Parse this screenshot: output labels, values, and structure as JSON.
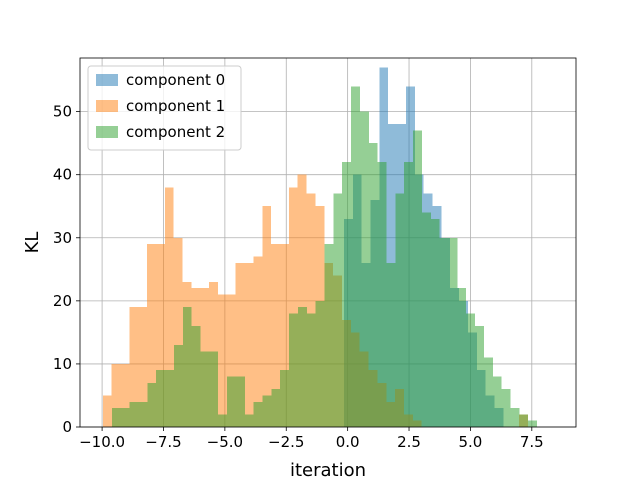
{
  "chart_data": {
    "type": "histogram",
    "xlabel": "iteration",
    "ylabel": "KL",
    "xlim": [
      -10.9,
      9.3
    ],
    "ylim": [
      0,
      58.5
    ],
    "grid": true,
    "legend_placement": "top-left",
    "x_ticks": [
      -10.0,
      -7.5,
      -5.0,
      -2.5,
      0.0,
      2.5,
      5.0,
      7.5
    ],
    "x_tick_labels": [
      "−10.0",
      "−7.5",
      "−5.0",
      "−2.5",
      "0.0",
      "2.5",
      "5.0",
      "7.5"
    ],
    "y_ticks": [
      0,
      10,
      20,
      30,
      40,
      50
    ],
    "y_tick_labels": [
      "0",
      "10",
      "20",
      "30",
      "40",
      "50"
    ],
    "series": [
      {
        "name": "component 0",
        "color": "#1f77b4",
        "alpha": 0.5,
        "bin_start": -0.15,
        "bin_width": 0.3607,
        "counts": [
          33,
          40,
          26,
          36,
          57,
          48,
          48,
          54,
          40,
          37,
          35,
          30,
          22,
          20,
          15,
          9,
          5,
          3
        ]
      },
      {
        "name": "component 1",
        "color": "#ff7f0e",
        "alpha": 0.5,
        "bin_start": -9.97,
        "bin_width": 0.3607,
        "counts": [
          5,
          10,
          10,
          19,
          19,
          29,
          29,
          38,
          30,
          23,
          22,
          22,
          23,
          21,
          21,
          26,
          26,
          27,
          35,
          29,
          29,
          38,
          40,
          37,
          35,
          26,
          24,
          17,
          15,
          12,
          9,
          7,
          4,
          6,
          2,
          1,
          0,
          0,
          0,
          0,
          0,
          0,
          0,
          0,
          0,
          0,
          0,
          2
        ]
      },
      {
        "name": "component 2",
        "color": "#2ca02c",
        "alpha": 0.5,
        "bin_start": -9.6,
        "bin_width": 0.3607,
        "counts": [
          3,
          3,
          4,
          4,
          7,
          9,
          9,
          13,
          19,
          16,
          12,
          12,
          2,
          8,
          8,
          2,
          4,
          5,
          6,
          9,
          18,
          19,
          18,
          20,
          29,
          37,
          42,
          54,
          50,
          45,
          42,
          26,
          37,
          42,
          47,
          34,
          33,
          30,
          30,
          22,
          18,
          16,
          11,
          8,
          6,
          3,
          2,
          1
        ]
      }
    ]
  }
}
